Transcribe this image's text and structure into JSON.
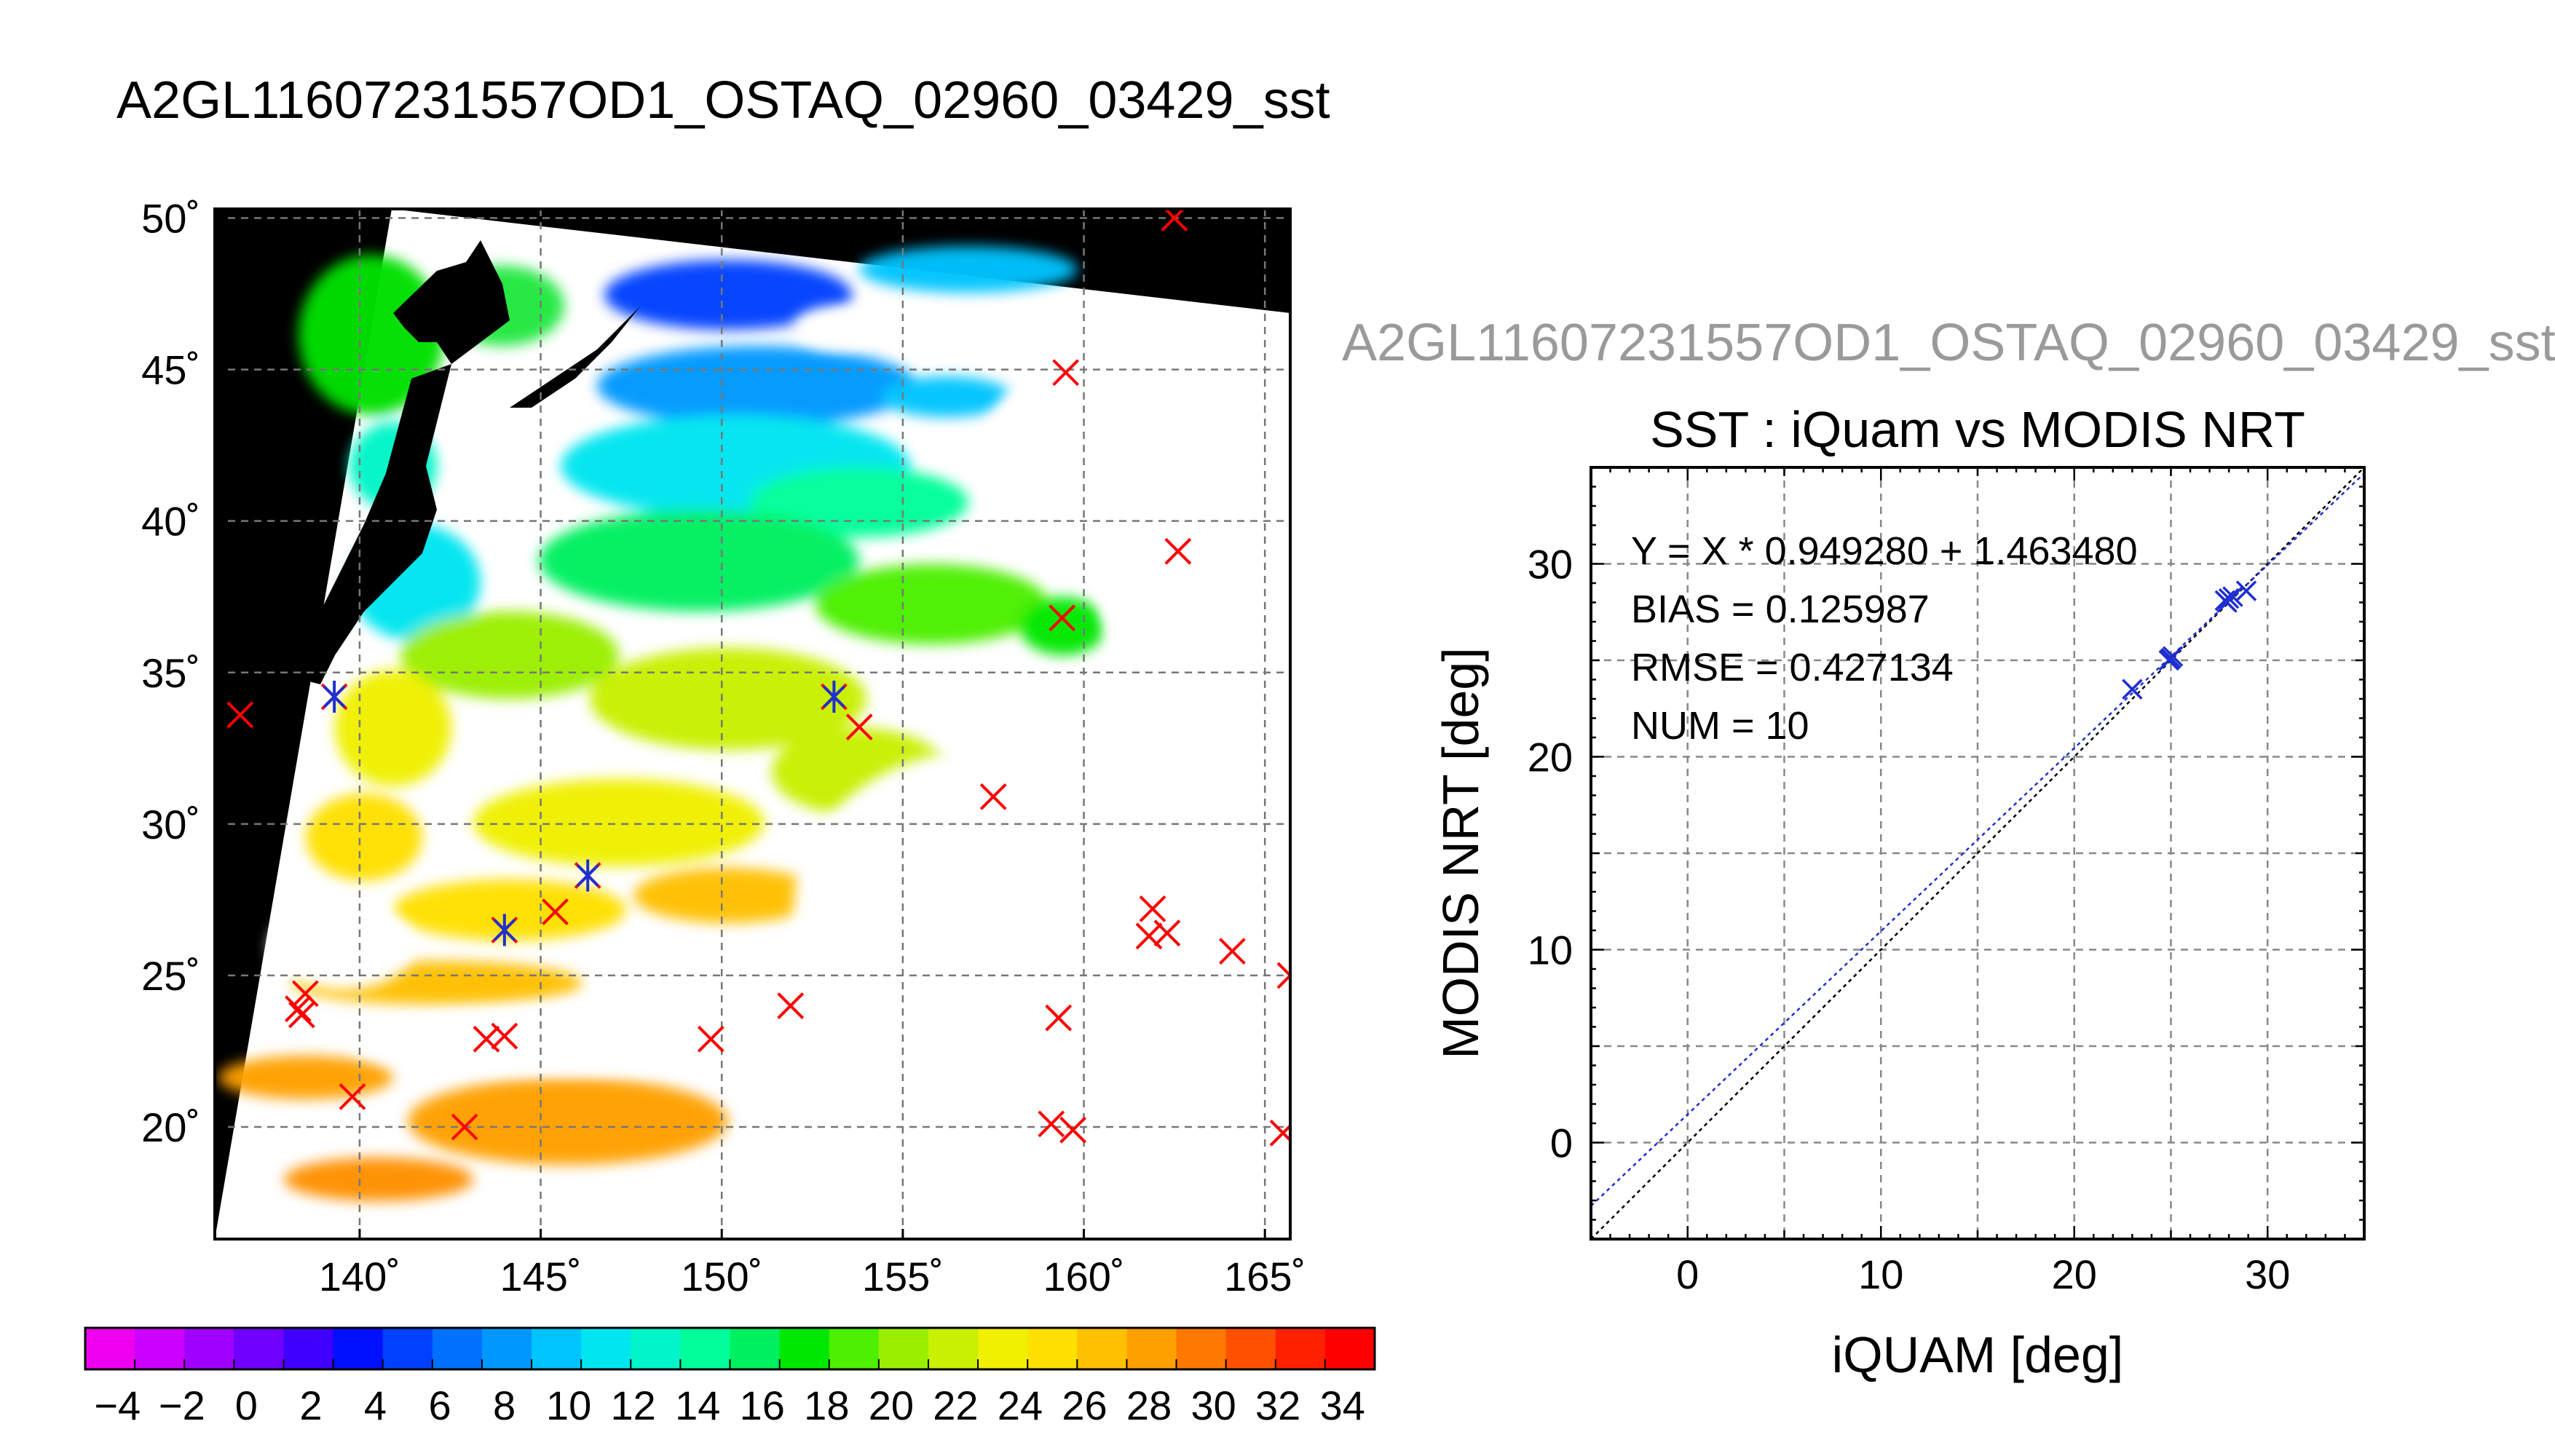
{
  "map": {
    "title": "A2GL11607231557OD1_OSTAQ_02960_03429_sst",
    "lon_ticks": [
      140,
      145,
      150,
      155,
      160,
      165
    ],
    "lat_ticks": [
      20,
      25,
      30,
      35,
      40,
      45,
      50
    ],
    "lon_tick_labels": [
      "140˚",
      "145˚",
      "150˚",
      "155˚",
      "160˚",
      "165˚"
    ],
    "lat_tick_labels": [
      "20˚",
      "25˚",
      "30˚",
      "35˚",
      "40˚",
      "45˚",
      "50˚"
    ],
    "lon_range": [
      136,
      165.7
    ],
    "lat_range": [
      16.3,
      50.3
    ],
    "colors": {
      "land": "#000000",
      "cloud": "#ffffff",
      "grid": "#777777",
      "match_red": "#ff0000",
      "match_blue": "#1f2fd0"
    },
    "red_markers": [
      [
        162.5,
        50.0
      ],
      [
        159.5,
        44.9
      ],
      [
        162.6,
        39.0
      ],
      [
        159.4,
        36.8
      ],
      [
        136.7,
        33.6
      ],
      [
        139.3,
        34.2
      ],
      [
        153.1,
        34.2
      ],
      [
        153.8,
        33.2
      ],
      [
        157.5,
        30.9
      ],
      [
        146.3,
        28.3
      ],
      [
        145.4,
        27.1
      ],
      [
        144.0,
        26.5
      ],
      [
        161.9,
        27.2
      ],
      [
        161.8,
        26.3
      ],
      [
        162.3,
        26.4
      ],
      [
        164.1,
        25.8
      ],
      [
        165.7,
        25.0
      ],
      [
        138.5,
        24.4
      ],
      [
        138.3,
        23.9
      ],
      [
        138.4,
        23.7
      ],
      [
        151.9,
        24.0
      ],
      [
        159.3,
        23.6
      ],
      [
        143.5,
        22.9
      ],
      [
        144.0,
        23.0
      ],
      [
        149.7,
        22.9
      ],
      [
        139.8,
        21.0
      ],
      [
        142.9,
        20.0
      ],
      [
        159.1,
        20.1
      ],
      [
        159.7,
        19.9
      ],
      [
        165.5,
        19.8
      ]
    ],
    "blue_markers": [
      [
        139.3,
        34.2
      ],
      [
        153.1,
        34.2
      ],
      [
        146.3,
        28.3
      ],
      [
        144.0,
        26.5
      ]
    ]
  },
  "colorbar": {
    "labels": [
      "−4",
      "−2",
      "0",
      "2",
      "4",
      "6",
      "8",
      "10",
      "12",
      "14",
      "16",
      "18",
      "20",
      "22",
      "24",
      "26",
      "28",
      "30",
      "32",
      "34"
    ],
    "min": -5,
    "max": 35,
    "colors": [
      "#ee00ee",
      "#cc00ff",
      "#a000ff",
      "#7000ff",
      "#3f00ff",
      "#0010ff",
      "#0040ff",
      "#0070ff",
      "#0098ff",
      "#00c4ff",
      "#00e6f0",
      "#00f5c8",
      "#00ff9a",
      "#00f060",
      "#00e800",
      "#4cf000",
      "#9aef00",
      "#c8f000",
      "#f0f000",
      "#ffe000",
      "#ffc000",
      "#ffa000",
      "#ff7800",
      "#ff5000",
      "#ff2000",
      "#ff0000"
    ]
  },
  "scatter": {
    "filename": "A2GL11607231557OD1_OSTAQ_02960_03429_sst",
    "title": "SST : iQuam vs MODIS NRT",
    "xlabel": "iQUAM [deg]",
    "ylabel": "MODIS NRT [deg]",
    "x_range": [
      -5,
      35
    ],
    "y_range": [
      -5,
      35
    ],
    "x_ticks": [
      0,
      10,
      20,
      30
    ],
    "y_ticks": [
      0,
      10,
      20,
      30
    ],
    "x_tick_labels": [
      "0",
      "10",
      "20",
      "30"
    ],
    "y_tick_labels": [
      "0",
      "10",
      "20",
      "30"
    ],
    "stats": [
      "Y = X * 0.949280 + 1.463480",
      "BIAS = 0.125987",
      "RMSE = 0.427134",
      "NUM = 10"
    ]
  },
  "chart_data": {
    "type": "scatter",
    "title": "SST : iQuam vs MODIS NRT",
    "xlabel": "iQUAM [deg]",
    "ylabel": "MODIS NRT [deg]",
    "xlim": [
      -5,
      35
    ],
    "ylim": [
      -5,
      35
    ],
    "grid": true,
    "points": [
      {
        "x": 23.0,
        "y": 23.5
      },
      {
        "x": 24.9,
        "y": 25.0
      },
      {
        "x": 25.0,
        "y": 25.1
      },
      {
        "x": 25.1,
        "y": 25.2
      },
      {
        "x": 24.95,
        "y": 25.05
      },
      {
        "x": 27.8,
        "y": 28.1
      },
      {
        "x": 28.0,
        "y": 28.2
      },
      {
        "x": 27.9,
        "y": 28.0
      },
      {
        "x": 28.2,
        "y": 28.3
      },
      {
        "x": 28.9,
        "y": 28.6
      }
    ],
    "regression": {
      "slope": 0.94928,
      "intercept": 1.46348
    },
    "identity_line": true,
    "bias": 0.125987,
    "rmse": 0.427134,
    "num": 10
  }
}
